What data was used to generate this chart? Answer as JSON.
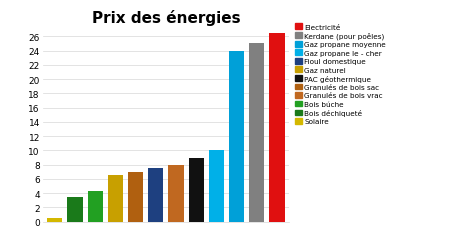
{
  "title": "Prix des énergies",
  "bar_order": [
    "Solaire",
    "Bois déchiqueté",
    "Bois búche",
    "Gaz naturel",
    "Granulés de bois sac",
    "Fioul domestique",
    "Granulés de bois vrac",
    "PAC géothermique",
    "Gaz propane le - cher",
    "Gaz propane moyenne",
    "Kerdane (pour poêles)",
    "Electricité"
  ],
  "values": [
    0.5,
    3.5,
    4.3,
    6.6,
    7.0,
    7.5,
    8.0,
    9.0,
    10.0,
    24.0,
    25.0,
    26.5
  ],
  "bar_colors": [
    "#d4b800",
    "#1a7a1a",
    "#22a022",
    "#c8a000",
    "#b06010",
    "#1e4080",
    "#c06820",
    "#111111",
    "#00b0e8",
    "#00a0d8",
    "#808080",
    "#e01010"
  ],
  "legend_items": [
    {
      "label": "Electricité",
      "color": "#e01010"
    },
    {
      "label": "Kerdane (pour poêles)",
      "color": "#808080"
    },
    {
      "label": "Gaz propane moyenne",
      "color": "#00a0d8"
    },
    {
      "label": "Gaz propane le - cher",
      "color": "#00b0e8"
    },
    {
      "label": "Fioul domestique",
      "color": "#1e4080"
    },
    {
      "label": "Gaz naturel",
      "color": "#c8a000"
    },
    {
      "label": "PAC géothermique",
      "color": "#111111"
    },
    {
      "label": "Granulés de bois sac",
      "color": "#b06010"
    },
    {
      "label": "Granulés de bois vrac",
      "color": "#c06820"
    },
    {
      "label": "Bois búche",
      "color": "#22a022"
    },
    {
      "label": "Bois déchiqueté",
      "color": "#1a7a1a"
    },
    {
      "label": "Solaire",
      "color": "#d4b800"
    }
  ],
  "ylim": [
    0,
    27
  ],
  "ytick_step": 2,
  "background_color": "#ffffff",
  "title_fontsize": 11,
  "grid_color": "#d8d8d8"
}
